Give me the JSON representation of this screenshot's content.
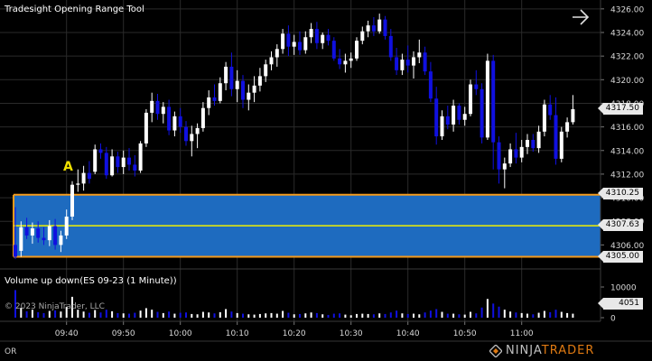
{
  "window": {
    "title": "Tradesight Opening Range Tool"
  },
  "price_axis": {
    "labels": [
      "4326.00",
      "4324.00",
      "4322.00",
      "4320.00",
      "4318.00",
      "4316.00",
      "4314.00",
      "4312.00",
      "4310.00",
      "4308.00",
      "4306.00"
    ],
    "min": 4304.5,
    "max": 4326.6
  },
  "price_tags": {
    "last": "4317.50",
    "or_high": "4310.25",
    "or_mid": "4307.63",
    "or_low": "4305.00"
  },
  "time_axis": {
    "labels": [
      "09:40",
      "09:50",
      "10:00",
      "10:10",
      "10:20",
      "10:30",
      "10:40",
      "10:50",
      "11:00"
    ]
  },
  "annotations": {
    "marker_a": "A"
  },
  "volume_panel": {
    "title": "Volume up down(ES 09-23 (1 Minute))",
    "value_tag": "4051",
    "axis_labels": [
      "10000",
      "5000",
      "0"
    ],
    "max": 10000
  },
  "copyright": "© 2023 NinjaTrader, LLC",
  "footer": {
    "left_label": "OR",
    "brand_left": "NINJA",
    "brand_right": "TRADER"
  },
  "colors": {
    "up": "#ffffff",
    "down": "#1010e0",
    "range_fill": "#1e6bbf",
    "range_border": "#f39a1c",
    "mid_line": "#f0f000",
    "marker": "#f0e000",
    "grid": "#2a2a2a"
  },
  "chart_data": {
    "type": "candlestick",
    "interval": "1 Minute",
    "instrument": "ES 09-23",
    "x_start_time": "09:31",
    "opening_range": {
      "high": 4310.25,
      "mid": 4307.63,
      "low": 4305.0
    },
    "candles": [
      [
        4306.0,
        4309.2,
        4304.8,
        4305.0,
        9000
      ],
      [
        4305.5,
        4308.0,
        4305.0,
        4307.5,
        3200
      ],
      [
        4307.5,
        4308.3,
        4306.5,
        4306.8,
        2100
      ],
      [
        4306.8,
        4307.9,
        4306.1,
        4307.4,
        2600
      ],
      [
        4307.4,
        4308.0,
        4306.2,
        4306.6,
        1800
      ],
      [
        4306.6,
        4307.5,
        4306.0,
        4306.4,
        1500
      ],
      [
        4306.4,
        4308.1,
        4305.9,
        4307.6,
        2200
      ],
      [
        4307.6,
        4308.2,
        4305.6,
        4306.0,
        2400
      ],
      [
        4306.0,
        4307.2,
        4305.4,
        4306.8,
        2000
      ],
      [
        4306.8,
        4309.0,
        4306.5,
        4308.4,
        3500
      ],
      [
        4308.4,
        4311.4,
        4308.1,
        4311.1,
        6800
      ],
      [
        4311.1,
        4312.4,
        4310.5,
        4311.2,
        2600
      ],
      [
        4311.2,
        4312.7,
        4310.6,
        4312.1,
        2000
      ],
      [
        4312.1,
        4313.1,
        4311.2,
        4311.6,
        1600
      ],
      [
        4312.2,
        4314.5,
        4312.0,
        4314.1,
        2500
      ],
      [
        4314.1,
        4314.6,
        4313.3,
        4313.8,
        1700
      ],
      [
        4313.8,
        4314.3,
        4311.6,
        4311.9,
        2600
      ],
      [
        4311.9,
        4314.1,
        4311.8,
        4313.5,
        2100
      ],
      [
        4313.5,
        4313.9,
        4312.1,
        4312.6,
        1500
      ],
      [
        4312.6,
        4314.0,
        4312.0,
        4313.4,
        1400
      ],
      [
        4313.4,
        4314.2,
        4312.3,
        4312.8,
        1300
      ],
      [
        4312.8,
        4313.6,
        4311.8,
        4312.3,
        1600
      ],
      [
        4312.3,
        4314.8,
        4312.1,
        4314.6,
        2300
      ],
      [
        4314.6,
        4317.5,
        4314.3,
        4317.2,
        3100
      ],
      [
        4317.2,
        4318.9,
        4316.4,
        4318.2,
        2600
      ],
      [
        4318.2,
        4318.8,
        4316.6,
        4317.1,
        1900
      ],
      [
        4317.1,
        4318.1,
        4316.3,
        4317.7,
        1500
      ],
      [
        4317.7,
        4318.3,
        4315.3,
        4315.7,
        2000
      ],
      [
        4315.7,
        4317.3,
        4315.2,
        4316.9,
        1300
      ],
      [
        4316.9,
        4317.6,
        4315.5,
        4316.0,
        1600
      ],
      [
        4316.0,
        4316.5,
        4314.4,
        4314.8,
        1700
      ],
      [
        4314.8,
        4316.1,
        4313.5,
        4315.4,
        1200
      ],
      [
        4315.4,
        4316.3,
        4314.2,
        4315.9,
        1100
      ],
      [
        4315.9,
        4318.1,
        4315.6,
        4317.6,
        1900
      ],
      [
        4317.6,
        4319.1,
        4317.0,
        4318.5,
        1700
      ],
      [
        4318.5,
        4319.6,
        4317.8,
        4318.2,
        1400
      ],
      [
        4318.2,
        4320.2,
        4318.0,
        4319.7,
        1800
      ],
      [
        4319.7,
        4321.5,
        4319.1,
        4321.1,
        2800
      ],
      [
        4321.1,
        4322.3,
        4318.6,
        4319.2,
        2000
      ],
      [
        4319.2,
        4320.8,
        4318.1,
        4319.9,
        1500
      ],
      [
        4319.9,
        4320.4,
        4317.6,
        4318.3,
        1300
      ],
      [
        4318.3,
        4319.6,
        4317.4,
        4318.9,
        1100
      ],
      [
        4318.9,
        4320.3,
        4318.1,
        4319.5,
        1000
      ],
      [
        4319.5,
        4321.0,
        4319.0,
        4320.3,
        1200
      ],
      [
        4320.3,
        4321.7,
        4319.8,
        4321.3,
        1400
      ],
      [
        4321.3,
        4322.4,
        4320.8,
        4321.9,
        1500
      ],
      [
        4321.9,
        4323.0,
        4321.1,
        4322.6,
        1300
      ],
      [
        4322.6,
        4324.3,
        4322.2,
        4323.9,
        2200
      ],
      [
        4323.9,
        4324.6,
        4322.0,
        4322.8,
        1600
      ],
      [
        4322.8,
        4323.8,
        4322.1,
        4323.2,
        1100
      ],
      [
        4323.2,
        4324.1,
        4322.1,
        4322.5,
        1200
      ],
      [
        4322.5,
        4324.1,
        4322.2,
        4323.6,
        1400
      ],
      [
        4323.6,
        4324.8,
        4323.1,
        4324.3,
        1700
      ],
      [
        4324.3,
        4324.9,
        4322.6,
        4323.1,
        1500
      ],
      [
        4323.1,
        4324.0,
        4322.6,
        4323.8,
        1100
      ],
      [
        4323.8,
        4324.3,
        4322.9,
        4323.3,
        900
      ],
      [
        4323.3,
        4323.6,
        4321.6,
        4321.8,
        1300
      ],
      [
        4321.8,
        4322.6,
        4320.9,
        4321.3,
        1400
      ],
      [
        4321.3,
        4322.2,
        4320.6,
        4321.6,
        1000
      ],
      [
        4321.6,
        4322.3,
        4321.0,
        4321.8,
        800
      ],
      [
        4321.8,
        4323.6,
        4321.6,
        4323.3,
        1200
      ],
      [
        4323.3,
        4324.5,
        4323.0,
        4324.1,
        1300
      ],
      [
        4324.1,
        4325.0,
        4323.6,
        4324.6,
        1200
      ],
      [
        4324.6,
        4325.3,
        4323.7,
        4324.1,
        1100
      ],
      [
        4324.1,
        4325.6,
        4323.9,
        4325.1,
        1400
      ],
      [
        4325.1,
        4325.4,
        4323.4,
        4323.7,
        1200
      ],
      [
        4323.7,
        4324.3,
        4321.6,
        4321.9,
        1700
      ],
      [
        4321.9,
        4322.7,
        4320.4,
        4320.8,
        2300
      ],
      [
        4320.8,
        4322.2,
        4320.4,
        4321.7,
        1400
      ],
      [
        4321.7,
        4322.9,
        4320.6,
        4321.2,
        1200
      ],
      [
        4321.2,
        4322.4,
        4320.1,
        4321.9,
        1300
      ],
      [
        4321.9,
        4323.4,
        4321.4,
        4322.3,
        1100
      ],
      [
        4322.3,
        4322.8,
        4320.4,
        4320.7,
        1700
      ],
      [
        4320.7,
        4321.5,
        4318.1,
        4318.4,
        2300
      ],
      [
        4318.4,
        4319.4,
        4314.5,
        4315.2,
        2800
      ],
      [
        4315.2,
        4317.4,
        4314.9,
        4316.9,
        1900
      ],
      [
        4316.9,
        4317.8,
        4315.8,
        4316.2,
        1300
      ],
      [
        4316.2,
        4318.3,
        4315.6,
        4317.8,
        1300
      ],
      [
        4317.8,
        4318.0,
        4316.2,
        4316.6,
        1100
      ],
      [
        4316.6,
        4317.7,
        4316.1,
        4317.1,
        1000
      ],
      [
        4317.1,
        4320.0,
        4316.9,
        4319.6,
        1900
      ],
      [
        4319.6,
        4320.8,
        4318.7,
        4319.2,
        1400
      ],
      [
        4319.2,
        4319.7,
        4314.6,
        4315.1,
        3300
      ],
      [
        4315.1,
        4322.2,
        4314.9,
        4321.6,
        6100
      ],
      [
        4321.6,
        4322.1,
        4312.4,
        4314.7,
        4600
      ],
      [
        4314.7,
        4315.2,
        4311.2,
        4312.4,
        3600
      ],
      [
        4312.4,
        4313.4,
        4310.8,
        4312.9,
        2600
      ],
      [
        4312.9,
        4314.6,
        4312.6,
        4314.1,
        2000
      ],
      [
        4314.1,
        4315.5,
        4312.9,
        4313.4,
        1700
      ],
      [
        4313.4,
        4314.9,
        4313.0,
        4314.3,
        1500
      ],
      [
        4314.3,
        4315.4,
        4313.7,
        4314.9,
        1300
      ],
      [
        4314.9,
        4315.4,
        4313.9,
        4314.2,
        1100
      ],
      [
        4314.2,
        4316.1,
        4313.8,
        4315.6,
        1600
      ],
      [
        4315.6,
        4318.3,
        4315.2,
        4317.9,
        2200
      ],
      [
        4317.9,
        4318.7,
        4316.6,
        4317.0,
        1800
      ],
      [
        4317.0,
        4318.5,
        4312.8,
        4313.3,
        2600
      ],
      [
        4313.3,
        4316.0,
        4313.0,
        4315.6,
        1900
      ],
      [
        4315.6,
        4316.8,
        4315.1,
        4316.4,
        1500
      ],
      [
        4316.4,
        4318.7,
        4316.2,
        4317.5,
        1300
      ]
    ]
  }
}
